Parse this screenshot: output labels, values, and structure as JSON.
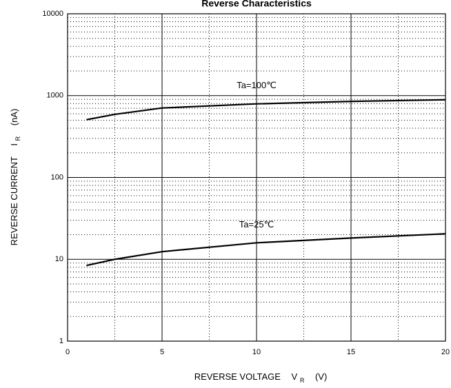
{
  "chart_data": {
    "type": "line",
    "title": "Reverse Characteristics",
    "x_label": {
      "text": "REVERSE VOLTAGE",
      "symbol": "V",
      "subscript": "R",
      "unit": "(V)"
    },
    "y_label": {
      "text": "REVERSE CURRENT",
      "symbol": "I",
      "subscript": "R",
      "unit": "(nA)"
    },
    "x": [
      1,
      2.5,
      5,
      10,
      15,
      20
    ],
    "series": [
      {
        "name": "Ta=100℃",
        "color": "#000000",
        "values": [
          508,
          590,
          706,
          793,
          850,
          890
        ]
      },
      {
        "name": "Ta=25℃",
        "color": "#000000",
        "values": [
          8.4,
          10,
          12.4,
          15.9,
          18.2,
          20.5
        ]
      }
    ],
    "xlim": [
      0,
      20
    ],
    "xticks": [
      0,
      5,
      10,
      15,
      20
    ],
    "ylim": [
      1,
      10000
    ],
    "yticks": [
      1,
      10,
      100,
      1000,
      10000
    ],
    "log_y": true,
    "grid": true
  }
}
